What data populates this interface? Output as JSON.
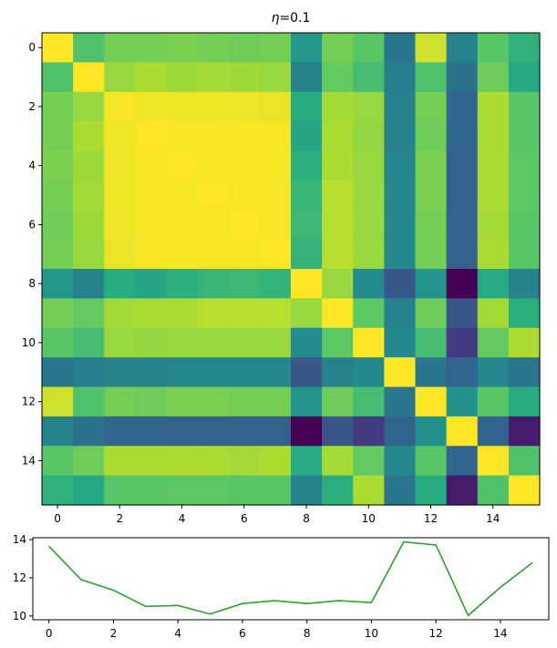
{
  "chart_data": [
    {
      "type": "heatmap",
      "title_symbol": "η",
      "title_value": "=0.1",
      "colormap": "viridis",
      "rows": 16,
      "cols": 16,
      "xticks": [
        0,
        2,
        4,
        6,
        8,
        10,
        12,
        14
      ],
      "yticks": [
        0,
        2,
        4,
        6,
        8,
        10,
        12,
        14
      ],
      "values": [
        [
          1.0,
          0.72,
          0.79,
          0.79,
          0.8,
          0.79,
          0.78,
          0.79,
          0.53,
          0.79,
          0.74,
          0.4,
          0.93,
          0.45,
          0.74,
          0.65
        ],
        [
          0.72,
          1.0,
          0.85,
          0.88,
          0.86,
          0.87,
          0.86,
          0.85,
          0.45,
          0.76,
          0.7,
          0.43,
          0.72,
          0.38,
          0.78,
          0.61
        ],
        [
          0.79,
          0.85,
          0.99,
          0.98,
          0.98,
          0.98,
          0.98,
          0.97,
          0.63,
          0.87,
          0.85,
          0.45,
          0.79,
          0.33,
          0.88,
          0.74
        ],
        [
          0.79,
          0.88,
          0.98,
          1.0,
          0.99,
          0.99,
          0.99,
          0.99,
          0.6,
          0.88,
          0.84,
          0.45,
          0.78,
          0.33,
          0.88,
          0.74
        ],
        [
          0.8,
          0.86,
          0.98,
          0.99,
          1.0,
          0.99,
          0.99,
          0.99,
          0.64,
          0.88,
          0.85,
          0.46,
          0.8,
          0.32,
          0.88,
          0.75
        ],
        [
          0.79,
          0.87,
          0.98,
          0.99,
          0.99,
          1.0,
          0.99,
          0.99,
          0.67,
          0.9,
          0.85,
          0.47,
          0.8,
          0.32,
          0.88,
          0.75
        ],
        [
          0.78,
          0.86,
          0.98,
          0.99,
          0.99,
          0.99,
          1.0,
          0.99,
          0.68,
          0.9,
          0.85,
          0.47,
          0.79,
          0.32,
          0.87,
          0.74
        ],
        [
          0.79,
          0.85,
          0.97,
          0.99,
          0.99,
          0.99,
          0.99,
          1.0,
          0.66,
          0.9,
          0.85,
          0.47,
          0.79,
          0.32,
          0.88,
          0.74
        ],
        [
          0.53,
          0.45,
          0.63,
          0.6,
          0.64,
          0.67,
          0.68,
          0.66,
          1.0,
          0.85,
          0.48,
          0.28,
          0.52,
          0.0,
          0.62,
          0.45
        ],
        [
          0.79,
          0.76,
          0.87,
          0.88,
          0.88,
          0.9,
          0.9,
          0.9,
          0.85,
          1.0,
          0.75,
          0.45,
          0.78,
          0.27,
          0.87,
          0.64
        ],
        [
          0.74,
          0.7,
          0.85,
          0.84,
          0.85,
          0.85,
          0.85,
          0.85,
          0.48,
          0.75,
          1.0,
          0.47,
          0.7,
          0.18,
          0.76,
          0.88
        ],
        [
          0.4,
          0.43,
          0.45,
          0.45,
          0.46,
          0.47,
          0.47,
          0.47,
          0.28,
          0.45,
          0.47,
          1.0,
          0.4,
          0.33,
          0.46,
          0.4
        ],
        [
          0.93,
          0.72,
          0.79,
          0.78,
          0.8,
          0.8,
          0.79,
          0.79,
          0.52,
          0.78,
          0.7,
          0.4,
          1.0,
          0.51,
          0.74,
          0.63
        ],
        [
          0.45,
          0.38,
          0.33,
          0.33,
          0.32,
          0.32,
          0.32,
          0.32,
          0.0,
          0.27,
          0.18,
          0.33,
          0.51,
          1.0,
          0.33,
          0.08
        ],
        [
          0.74,
          0.78,
          0.88,
          0.88,
          0.88,
          0.88,
          0.87,
          0.88,
          0.62,
          0.87,
          0.76,
          0.46,
          0.74,
          0.33,
          1.0,
          0.72
        ],
        [
          0.65,
          0.61,
          0.74,
          0.74,
          0.75,
          0.75,
          0.74,
          0.74,
          0.45,
          0.64,
          0.88,
          0.4,
          0.63,
          0.08,
          0.72,
          1.0
        ]
      ]
    },
    {
      "type": "line",
      "x": [
        0,
        1,
        2,
        3,
        4,
        5,
        6,
        7,
        8,
        9,
        10,
        11,
        12,
        13,
        14,
        15
      ],
      "y": [
        13.65,
        11.9,
        11.35,
        10.5,
        10.55,
        10.1,
        10.65,
        10.8,
        10.65,
        10.8,
        10.7,
        13.88,
        13.72,
        10.02,
        11.5,
        12.8
      ],
      "color": "#2ca02c",
      "xlim": [
        -0.5,
        15.5
      ],
      "ylim": [
        9.8,
        14.1
      ],
      "xticks": [
        0,
        2,
        4,
        6,
        8,
        10,
        12,
        14
      ],
      "yticks": [
        10,
        12,
        14
      ]
    }
  ]
}
